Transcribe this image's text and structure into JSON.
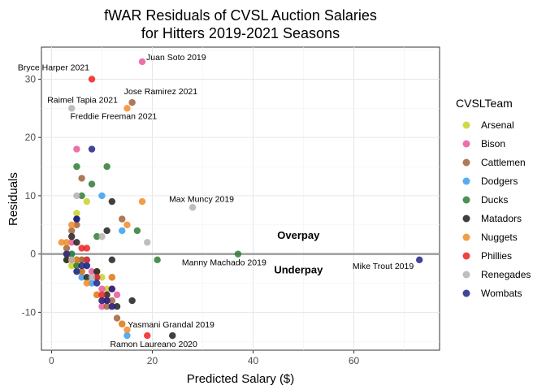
{
  "chart_data": {
    "type": "scatter",
    "title": [
      "fWAR Residuals of CVSL Auction Salaries",
      "for Hitters 2019-2021 Seasons"
    ],
    "xlabel": "Predicted Salary ($)",
    "ylabel": "Residuals",
    "xlim": [
      -2,
      77
    ],
    "ylim": [
      -16.5,
      35.5
    ],
    "xticks": [
      0,
      20,
      40,
      60
    ],
    "yticks": [
      -10,
      0,
      10,
      20,
      30
    ],
    "grid": true,
    "reference_line_y": 0,
    "legend": {
      "title": "CVSLTeam",
      "position": "right",
      "entries": [
        "Arsenal",
        "Bison",
        "Cattlemen",
        "Dodgers",
        "Ducks",
        "Matadors",
        "Nuggets",
        "Phillies",
        "Renegades",
        "Wombats"
      ]
    },
    "colors": {
      "Arsenal": "#c8d12a",
      "Bison": "#e8589e",
      "Cattlemen": "#a0613a",
      "Dodgers": "#3a9ef0",
      "Ducks": "#2e7d32",
      "Matadors": "#1f1f1f",
      "Nuggets": "#f08c28",
      "Phillies": "#f02020",
      "Renegades": "#b3b3b3",
      "Wombats": "#1e2488"
    },
    "zone_labels": [
      {
        "text": "Overpay",
        "x": 49,
        "y": 2.6
      },
      {
        "text": "Underpay",
        "x": 49,
        "y": -3.3
      }
    ],
    "annotations": [
      {
        "text": "Juan Soto 2019",
        "x": 18,
        "y": 33
      },
      {
        "text": "Bryce Harper 2021",
        "x": 8,
        "y": 30
      },
      {
        "text": "Jose Ramirez 2021",
        "x": 16,
        "y": 26
      },
      {
        "text": "Raimel Tapia 2021",
        "x": 4,
        "y": 25
      },
      {
        "text": "Freddie Freeman 2021",
        "x": 15,
        "y": 25
      },
      {
        "text": "Max Muncy 2019",
        "x": 28,
        "y": 8
      },
      {
        "text": "Manny Machado 2019",
        "x": 37,
        "y": 0
      },
      {
        "text": "Mike Trout 2019",
        "x": 73,
        "y": -1
      },
      {
        "text": "Yasmani Grandal 2019",
        "x": 24,
        "y": -14
      },
      {
        "text": "Ramon Laureano 2020",
        "x": 15,
        "y": -14
      }
    ],
    "series": [
      {
        "name": "Arsenal",
        "points": [
          [
            5,
            7
          ],
          [
            7,
            9
          ],
          [
            3,
            -1
          ],
          [
            4,
            -2
          ],
          [
            5,
            -2
          ],
          [
            9,
            -3
          ],
          [
            10,
            -4
          ],
          [
            11,
            -6
          ],
          [
            6,
            -1
          ]
        ]
      },
      {
        "name": "Bison",
        "points": [
          [
            18,
            33
          ],
          [
            5,
            18
          ],
          [
            4,
            2
          ],
          [
            8,
            -3
          ],
          [
            10,
            -6
          ],
          [
            13,
            -7
          ],
          [
            10,
            -9
          ],
          [
            12,
            -9
          ],
          [
            9,
            -4
          ]
        ]
      },
      {
        "name": "Cattlemen",
        "points": [
          [
            16,
            26
          ],
          [
            6,
            13
          ],
          [
            3,
            1
          ],
          [
            4,
            4
          ],
          [
            6,
            -1
          ],
          [
            7,
            -2
          ],
          [
            12,
            -4
          ],
          [
            13,
            -11
          ],
          [
            14,
            -12
          ],
          [
            9,
            -7
          ],
          [
            12,
            -8
          ],
          [
            11,
            -9
          ],
          [
            14,
            6
          ],
          [
            5,
            5
          ]
        ]
      },
      {
        "name": "Dodgers",
        "points": [
          [
            15,
            -14
          ],
          [
            10,
            10
          ],
          [
            14,
            4
          ],
          [
            6,
            -4
          ],
          [
            8,
            -5
          ],
          [
            4,
            0
          ],
          [
            7,
            -1
          ],
          [
            9,
            -4
          ]
        ]
      },
      {
        "name": "Ducks",
        "points": [
          [
            37,
            0
          ],
          [
            5,
            15
          ],
          [
            11,
            15
          ],
          [
            8,
            12
          ],
          [
            6,
            10
          ],
          [
            17,
            4
          ],
          [
            9,
            3
          ],
          [
            21,
            -1
          ],
          [
            7,
            -2
          ],
          [
            5,
            -2
          ],
          [
            4,
            0
          ]
        ]
      },
      {
        "name": "Matadors",
        "points": [
          [
            24,
            -14
          ],
          [
            12,
            9
          ],
          [
            11,
            4
          ],
          [
            5,
            6
          ],
          [
            4,
            3
          ],
          [
            3,
            0
          ],
          [
            5,
            -1
          ],
          [
            6,
            -3
          ],
          [
            9,
            -3
          ],
          [
            12,
            -1
          ],
          [
            11,
            -7
          ],
          [
            16,
            -8
          ],
          [
            13,
            -9
          ],
          [
            3,
            -1
          ],
          [
            5,
            2
          ],
          [
            7,
            -4
          ]
        ]
      },
      {
        "name": "Nuggets",
        "points": [
          [
            15,
            25
          ],
          [
            18,
            9
          ],
          [
            4,
            5
          ],
          [
            2,
            2
          ],
          [
            3,
            0
          ],
          [
            4,
            -1
          ],
          [
            6,
            -3
          ],
          [
            7,
            -5
          ],
          [
            9,
            -7
          ],
          [
            10,
            -8
          ],
          [
            12,
            -4
          ],
          [
            14,
            -12
          ],
          [
            15,
            -13
          ],
          [
            5,
            -1
          ],
          [
            15,
            5
          ],
          [
            3,
            2
          ]
        ]
      },
      {
        "name": "Phillies",
        "points": [
          [
            8,
            30
          ],
          [
            19,
            -14
          ],
          [
            6,
            1
          ],
          [
            7,
            -1
          ],
          [
            9,
            -4
          ],
          [
            10,
            -7
          ],
          [
            11,
            -8
          ],
          [
            12,
            -6
          ],
          [
            7,
            1
          ]
        ]
      },
      {
        "name": "Renegades",
        "points": [
          [
            4,
            25
          ],
          [
            28,
            8
          ],
          [
            5,
            10
          ],
          [
            19,
            2
          ],
          [
            10,
            3
          ],
          [
            4,
            -1
          ],
          [
            5,
            -3
          ],
          [
            7,
            -2
          ],
          [
            8,
            -4
          ]
        ]
      },
      {
        "name": "Wombats",
        "points": [
          [
            73,
            -1
          ],
          [
            8,
            18
          ],
          [
            5,
            6
          ],
          [
            3,
            0
          ],
          [
            5,
            -3
          ],
          [
            7,
            -2
          ],
          [
            9,
            -5
          ],
          [
            11,
            -8
          ],
          [
            12,
            -9
          ],
          [
            10,
            -8
          ],
          [
            6,
            -2
          ],
          [
            12,
            -6
          ]
        ]
      }
    ]
  }
}
